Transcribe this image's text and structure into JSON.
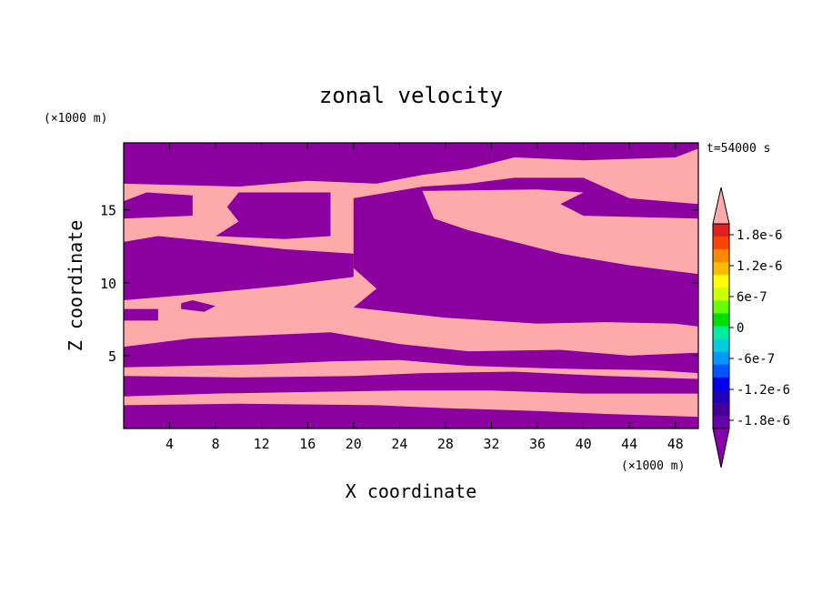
{
  "chart_data": {
    "type": "heatmap",
    "title": "zonal velocity",
    "xlabel": "X coordinate",
    "ylabel": "Z coordinate",
    "x_unit": "(×1000 m)",
    "y_unit": "(×1000 m)",
    "time_label": "t=54000 s",
    "xlim": [
      0,
      50
    ],
    "ylim": [
      0,
      19.6
    ],
    "x_ticks": [
      4,
      8,
      12,
      16,
      20,
      24,
      28,
      32,
      36,
      40,
      44,
      48
    ],
    "y_ticks": [
      5,
      10,
      15
    ],
    "colorbar": {
      "labels": [
        "1.8e-6",
        "1.2e-6",
        "6e-7",
        "0",
        "-6e-7",
        "-1.2e-6",
        "-1.8e-6"
      ],
      "colors": [
        "#e02020",
        "#ff4400",
        "#ff8800",
        "#ffbb00",
        "#ffff00",
        "#ccff00",
        "#66ff00",
        "#00dd00",
        "#00ee99",
        "#00ccdd",
        "#0099ff",
        "#0055ff",
        "#0000ee",
        "#2200bb",
        "#440099",
        "#6600aa"
      ],
      "over_color": "#ffaaaa",
      "under_color": "#8800aa"
    },
    "field_colors": {
      "positive": "#ffaaaa",
      "negative": "#8c00a0"
    },
    "regions": [
      {
        "sign": "negative",
        "poly": [
          [
            0,
            0
          ],
          [
            50,
            0
          ],
          [
            50,
            0.8
          ],
          [
            42,
            1.0
          ],
          [
            36,
            1.2
          ],
          [
            28,
            1.4
          ],
          [
            22,
            1.6
          ],
          [
            10,
            1.7
          ],
          [
            0,
            1.6
          ]
        ]
      },
      {
        "sign": "negative",
        "poly": [
          [
            0,
            2.2
          ],
          [
            8,
            2.4
          ],
          [
            16,
            2.5
          ],
          [
            24,
            2.6
          ],
          [
            32,
            2.6
          ],
          [
            40,
            2.4
          ],
          [
            50,
            2.4
          ],
          [
            50,
            3.4
          ],
          [
            42,
            3.6
          ],
          [
            34,
            3.9
          ],
          [
            26,
            3.8
          ],
          [
            20,
            3.6
          ],
          [
            10,
            3.5
          ],
          [
            0,
            3.6
          ]
        ]
      },
      {
        "sign": "negative",
        "poly": [
          [
            0,
            4.2
          ],
          [
            6,
            4.3
          ],
          [
            12,
            4.4
          ],
          [
            18,
            4.6
          ],
          [
            24,
            4.7
          ],
          [
            30,
            4.3
          ],
          [
            38,
            4.1
          ],
          [
            46,
            4.0
          ],
          [
            50,
            3.8
          ],
          [
            50,
            5.2
          ],
          [
            44,
            5.0
          ],
          [
            38,
            5.4
          ],
          [
            30,
            5.3
          ],
          [
            24,
            5.8
          ],
          [
            18,
            6.6
          ],
          [
            12,
            6.4
          ],
          [
            6,
            6.2
          ],
          [
            0,
            5.6
          ]
        ]
      },
      {
        "sign": "negative",
        "poly": [
          [
            0,
            7.4
          ],
          [
            3,
            7.4
          ],
          [
            3,
            8.2
          ],
          [
            0,
            8.2
          ]
        ]
      },
      {
        "sign": "negative",
        "poly": [
          [
            5,
            8.2
          ],
          [
            7,
            8.0
          ],
          [
            8,
            8.4
          ],
          [
            6,
            8.8
          ],
          [
            5,
            8.6
          ]
        ]
      },
      {
        "sign": "negative",
        "poly": [
          [
            20,
            8.3
          ],
          [
            28,
            7.6
          ],
          [
            36,
            7.2
          ],
          [
            42,
            7.3
          ],
          [
            48,
            7.2
          ],
          [
            50,
            7.0
          ],
          [
            50,
            10.6
          ],
          [
            44,
            11.2
          ],
          [
            38,
            12.0
          ],
          [
            34,
            12.8
          ],
          [
            30,
            13.6
          ],
          [
            27,
            14.4
          ],
          [
            26,
            16.3
          ],
          [
            36,
            16.4
          ],
          [
            40,
            16.2
          ],
          [
            38,
            15.4
          ],
          [
            40,
            14.6
          ],
          [
            50,
            14.4
          ],
          [
            50,
            15.4
          ],
          [
            44,
            15.8
          ],
          [
            42,
            16.5
          ],
          [
            40,
            17.2
          ],
          [
            34,
            17.2
          ],
          [
            30,
            16.8
          ],
          [
            26,
            16.6
          ],
          [
            20,
            15.8
          ],
          [
            20,
            11.0
          ],
          [
            22,
            9.6
          ]
        ]
      },
      {
        "sign": "negative",
        "poly": [
          [
            0,
            8.8
          ],
          [
            6,
            9.2
          ],
          [
            14,
            9.8
          ],
          [
            20,
            10.4
          ],
          [
            20,
            12.0
          ],
          [
            14,
            12.3
          ],
          [
            8,
            12.8
          ],
          [
            3,
            13.2
          ],
          [
            0,
            12.8
          ]
        ]
      },
      {
        "sign": "negative",
        "poly": [
          [
            8,
            13.2
          ],
          [
            14,
            13.0
          ],
          [
            18,
            13.2
          ],
          [
            18,
            16.2
          ],
          [
            10,
            16.2
          ],
          [
            9,
            15.2
          ],
          [
            10,
            14.2
          ]
        ]
      },
      {
        "sign": "negative",
        "poly": [
          [
            0,
            14.4
          ],
          [
            6,
            14.6
          ],
          [
            6,
            16.0
          ],
          [
            2,
            16.2
          ],
          [
            0,
            15.6
          ]
        ]
      },
      {
        "sign": "negative",
        "poly": [
          [
            0,
            16.8
          ],
          [
            10,
            16.6
          ],
          [
            16,
            17.0
          ],
          [
            22,
            16.8
          ],
          [
            26,
            17.4
          ],
          [
            30,
            17.8
          ],
          [
            34,
            18.6
          ],
          [
            40,
            18.4
          ],
          [
            48,
            18.6
          ],
          [
            50,
            19.2
          ],
          [
            50,
            19.6
          ],
          [
            0,
            19.6
          ]
        ]
      }
    ]
  }
}
